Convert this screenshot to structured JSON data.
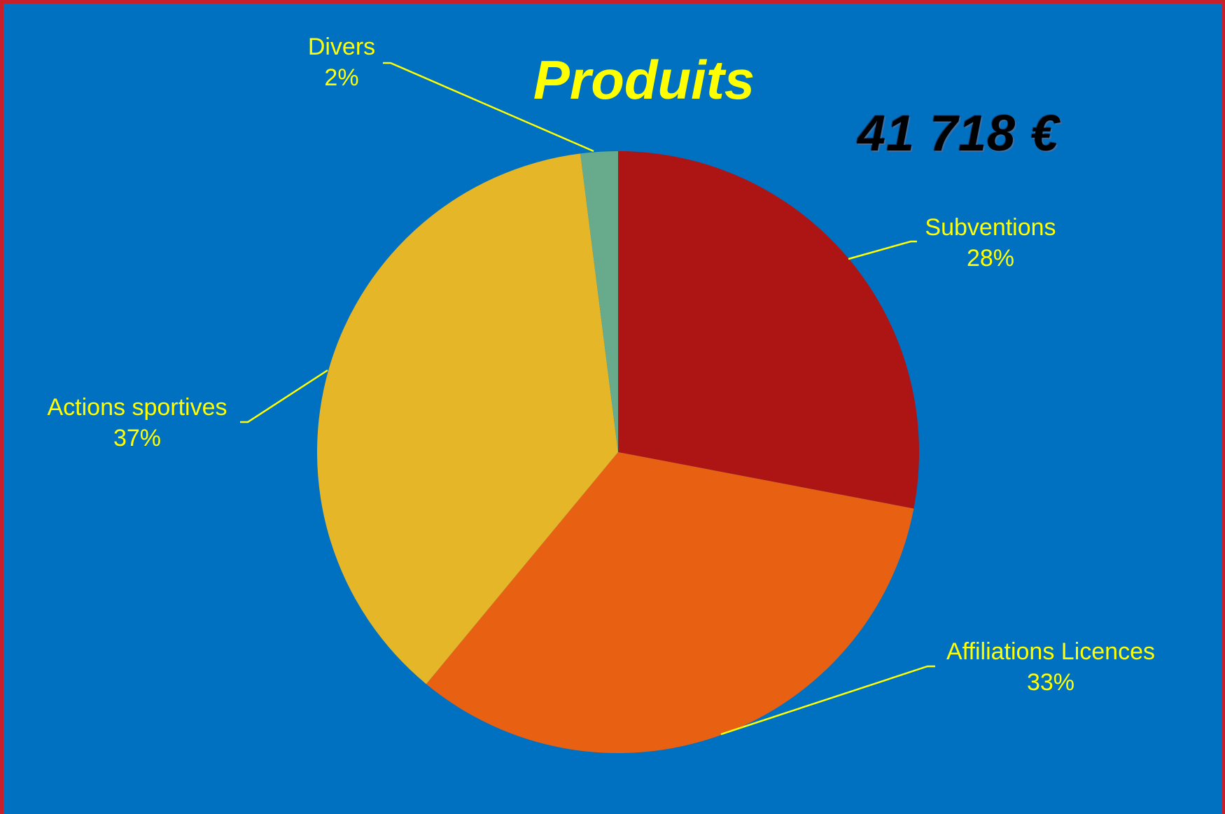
{
  "chart_data": {
    "type": "pie",
    "title": "Produits",
    "total_label": "41 718 €",
    "start_angle_deg": 0,
    "direction": "clockwise",
    "slices": [
      {
        "name": "Subventions",
        "value": 28,
        "label": "28%",
        "color": "#ad1414"
      },
      {
        "name": "Affiliations Licences",
        "value": 33,
        "label": "33%",
        "color": "#e86112"
      },
      {
        "name": "Actions sportives",
        "value": 37,
        "label": "37%",
        "color": "#e4b628"
      },
      {
        "name": "Divers",
        "value": 2,
        "label": "2%",
        "color": "#68aa8c"
      }
    ],
    "background_color": "#0070c0",
    "label_color": "#ffff00",
    "leader_line_color": "#ffff00"
  }
}
